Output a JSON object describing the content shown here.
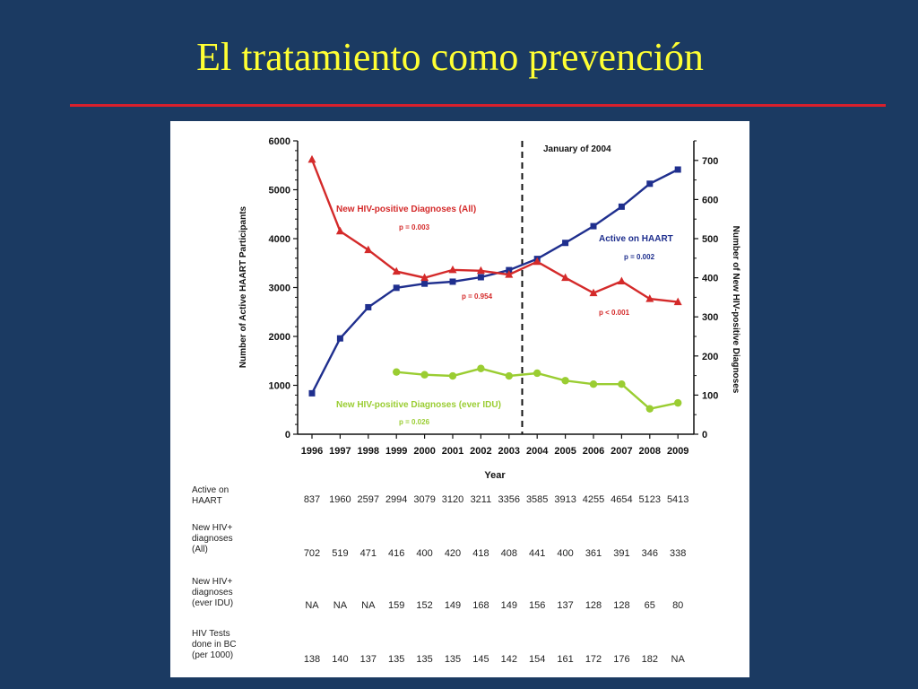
{
  "slide": {
    "title": "El tratamiento como  prevención",
    "colors": {
      "background": "#1b3a62",
      "title": "#ffff33",
      "rule": "#d8202c"
    }
  },
  "chart_data": {
    "type": "line",
    "x": [
      "1996",
      "1997",
      "1998",
      "1999",
      "2000",
      "2001",
      "2002",
      "2003",
      "2004",
      "2005",
      "2006",
      "2007",
      "2008",
      "2009"
    ],
    "xlabel": "Year",
    "ylabel_left": "Number of Active HAART Participants",
    "ylabel_right": "Number of  New HIV-positive Diagnoses",
    "ylim_left": [
      0,
      6000
    ],
    "yticks_left": [
      0,
      1000,
      2000,
      3000,
      4000,
      5000,
      6000
    ],
    "ylim_right": [
      0,
      750
    ],
    "yticks_right": [
      0,
      100,
      200,
      300,
      400,
      500,
      600,
      700
    ],
    "vline_label": "January of 2004",
    "series": [
      {
        "name": "Active on HAART",
        "axis": "left",
        "color": "#1f2f8e",
        "marker": "square",
        "values": [
          837,
          1960,
          2597,
          2994,
          3079,
          3120,
          3211,
          3356,
          3585,
          3913,
          4255,
          4654,
          5123,
          5413
        ],
        "annotation": "p = 0.002"
      },
      {
        "name": "New HIV-positive Diagnoses (All)",
        "axis": "right",
        "color": "#d42a2a",
        "marker": "triangle",
        "values": [
          702,
          519,
          471,
          416,
          400,
          420,
          418,
          408,
          441,
          400,
          361,
          391,
          346,
          338
        ],
        "annotations": [
          "p = 0.003",
          "p = 0.954",
          "p < 0.001"
        ]
      },
      {
        "name": "New HIV-positive Diagnoses (ever IDU)",
        "axis": "right",
        "color": "#9acd32",
        "marker": "circle",
        "values": [
          null,
          null,
          null,
          159,
          152,
          149,
          168,
          149,
          156,
          137,
          128,
          128,
          65,
          80
        ],
        "annotation": "p = 0.026"
      }
    ],
    "table": {
      "columns": [
        "1996",
        "1997",
        "1998",
        "1999",
        "2000",
        "2001",
        "2002",
        "2003",
        "2004",
        "2005",
        "2006",
        "2007",
        "2008",
        "2009"
      ],
      "rows": [
        {
          "label": [
            "Active on",
            "HAART"
          ],
          "values": [
            "837",
            "1960",
            "2597",
            "2994",
            "3079",
            "3120",
            "3211",
            "3356",
            "3585",
            "3913",
            "4255",
            "4654",
            "5123",
            "5413"
          ]
        },
        {
          "label": [
            "New HIV+",
            "diagnoses",
            "(All)"
          ],
          "values": [
            "702",
            "519",
            "471",
            "416",
            "400",
            "420",
            "418",
            "408",
            "441",
            "400",
            "361",
            "391",
            "346",
            "338"
          ]
        },
        {
          "label": [
            "New HIV+",
            "diagnoses",
            "(ever IDU)"
          ],
          "values": [
            "NA",
            "NA",
            "NA",
            "159",
            "152",
            "149",
            "168",
            "149",
            "156",
            "137",
            "128",
            "128",
            "65",
            "80"
          ]
        },
        {
          "label": [
            "HIV Tests",
            "done in BC",
            "(per 1000)"
          ],
          "values": [
            "138",
            "140",
            "137",
            "135",
            "135",
            "135",
            "145",
            "142",
            "154",
            "161",
            "172",
            "176",
            "182",
            "NA"
          ]
        }
      ]
    }
  }
}
